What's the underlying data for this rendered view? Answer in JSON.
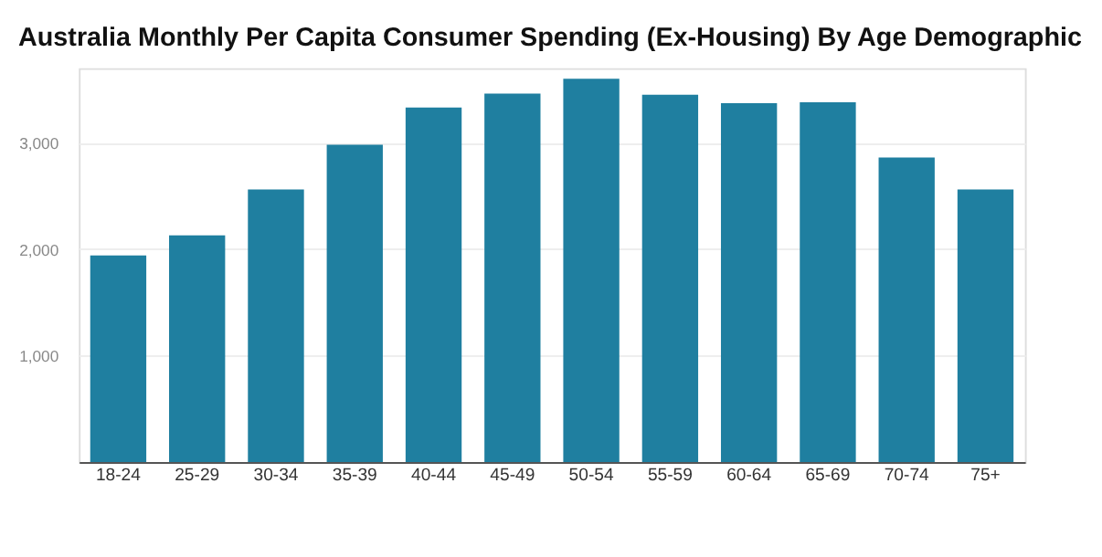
{
  "chart_data": {
    "type": "bar",
    "title": "Australia Monthly Per Capita Consumer Spending (Ex-Housing) By Age Demographic",
    "categories": [
      "18-24",
      "25-29",
      "30-34",
      "35-39",
      "40-44",
      "45-49",
      "50-54",
      "55-59",
      "60-64",
      "65-69",
      "70-74",
      "75+"
    ],
    "values": [
      1940,
      2130,
      2560,
      2980,
      3330,
      3460,
      3600,
      3450,
      3370,
      3380,
      2860,
      2560
    ],
    "color": "#1f7fa0",
    "ylim": [
      0,
      3700
    ],
    "yticks": [
      {
        "value": 0,
        "label": null
      },
      {
        "value": 1000,
        "label": "1,000"
      },
      {
        "value": 2000,
        "label": "2,000"
      },
      {
        "value": 3000,
        "label": "3,000"
      }
    ],
    "grid": "y"
  }
}
